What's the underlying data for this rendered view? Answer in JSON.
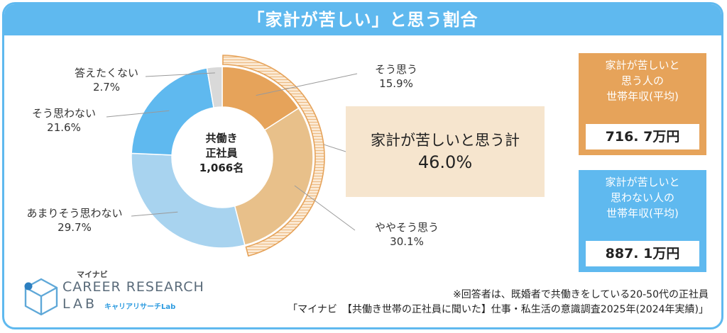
{
  "title": "「家計が苦しい」と思う割合",
  "center_label": "共働き\n正社員\n1,066名",
  "total_box": {
    "line1": "家計が苦しいと思う計",
    "line2": "46.0%"
  },
  "income_hard": {
    "text": "家計が苦しいと\n思う人の\n世帯年収(平均)",
    "value": "716. 7万円"
  },
  "income_not_hard": {
    "text": "家計が苦しいと\n思わない人の\n世帯年収(平均)",
    "value": "887. 1万円"
  },
  "logo": {
    "brand": "マイナビ",
    "line1": "CAREER RESEARCH",
    "line2": "LAB",
    "kana": "キャリアリサーチLab"
  },
  "notes": [
    "※回答者は、既婚者で共働きをしている20-50代の正社員",
    "「マイナビ　【共働き世帯の正社員に聞いた】仕事・私生活の意識調査2025年(2024年実績)」"
  ],
  "colors": {
    "header": "#5fb9ef",
    "sou_omou": "#e6a35a",
    "yaya_sou_omou": "#e8c08a",
    "amari_sou_omowanai": "#a8d3ef",
    "sou_omowanai": "#5fb9ef",
    "kotaetakunai": "#d9d9d9",
    "outer_ring": "#e6a35a",
    "total_box": "#f6e5ce"
  },
  "chart_data": {
    "type": "pie",
    "donut": true,
    "categories": [
      "そう思う",
      "ややそう思う",
      "あまりそう思わない",
      "そう思わない",
      "答えたくない"
    ],
    "values": [
      15.9,
      30.1,
      29.7,
      21.6,
      2.7
    ],
    "value_labels": [
      "15.9%",
      "30.1%",
      "29.7%",
      "21.6%",
      "2.7%"
    ],
    "highlight": {
      "categories": [
        "そう思う",
        "ややそう思う"
      ],
      "value": 46.0
    }
  }
}
